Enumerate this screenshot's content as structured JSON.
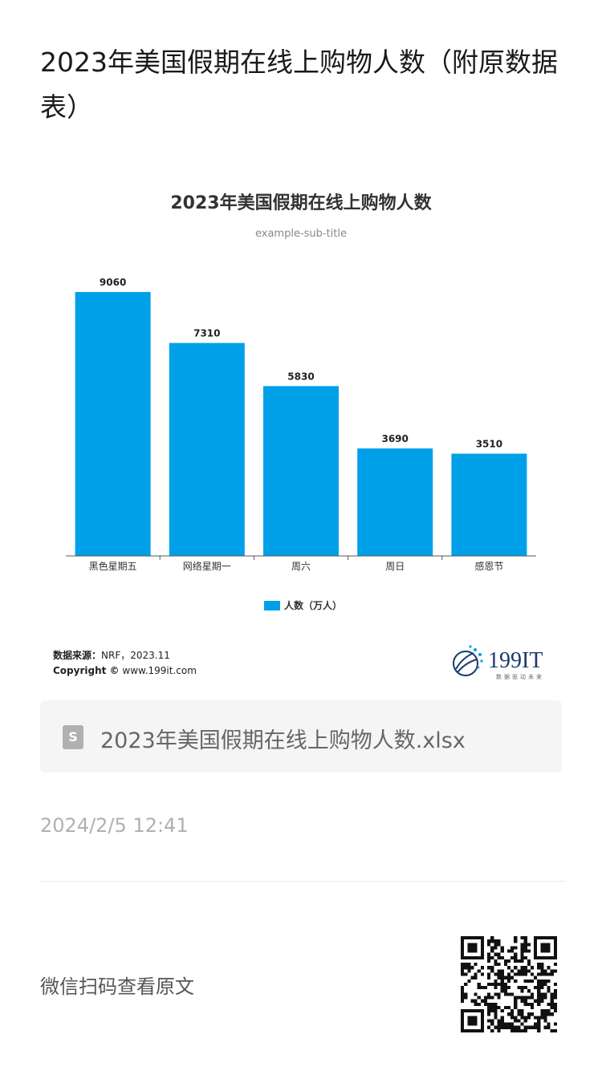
{
  "page": {
    "title": "2023年美国假期在线上购物人数（附原数据表）"
  },
  "chart_data": {
    "type": "bar",
    "title": "2023年美国假期在线上购物人数",
    "subtitle": "example-sub-title",
    "categories": [
      "黑色星期五",
      "网络星期一",
      "周六",
      "周日",
      "感恩节"
    ],
    "series": [
      {
        "name": "人数（万人）",
        "values": [
          9060,
          7310,
          5830,
          3690,
          3510
        ]
      }
    ],
    "ylim": [
      0,
      9500
    ],
    "grid": false,
    "legend": "bottom-center",
    "bar_color": "#00a0e9",
    "data_labels": true
  },
  "source": {
    "label": "数据来源：",
    "value": "NRF，2023.11",
    "copyright_label": "Copyright ©",
    "copyright_value": "www.199it.com"
  },
  "logo": {
    "name": "199IT",
    "tagline": "数据驱动未来",
    "color": "#1a3a6e",
    "accent": "#00a0e9"
  },
  "attachment": {
    "icon": "spreadsheet-file-icon",
    "filename": "2023年美国假期在线上购物人数.xlsx"
  },
  "post": {
    "date": "2024/2/5 12:41"
  },
  "footer": {
    "qr_label": "微信扫码查看原文"
  }
}
